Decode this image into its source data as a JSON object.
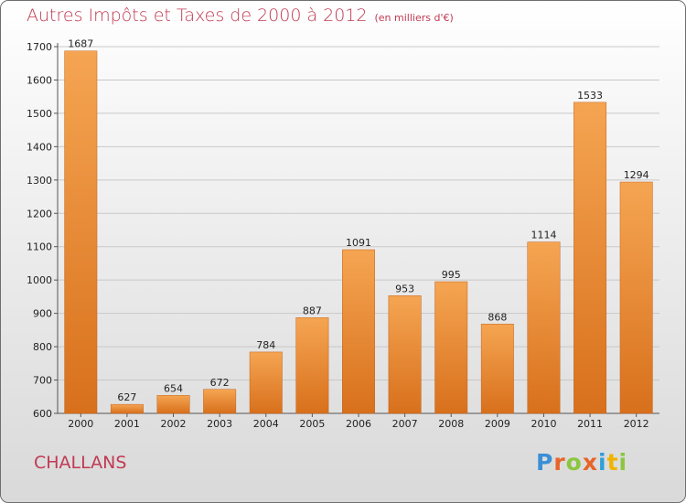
{
  "header": {
    "title": "Autres Impôts et Taxes de 2000 à 2012",
    "subtitle": "(en milliers d'€)"
  },
  "footer": {
    "place": "CHALLANS",
    "logo": {
      "text": "Proxiti",
      "letter_colors": [
        "#3b8fd6",
        "#e7652a",
        "#8cc63f",
        "#e7652a",
        "#2f9fd8",
        "#f0b400",
        "#8cc63f"
      ]
    }
  },
  "colors": {
    "title": "#c13a53",
    "bar_light": "#f5a552",
    "bar_dark": "#d8701c"
  },
  "chart_data": {
    "type": "bar",
    "categories": [
      "2000",
      "2001",
      "2002",
      "2003",
      "2004",
      "2005",
      "2006",
      "2007",
      "2008",
      "2009",
      "2010",
      "2011",
      "2012"
    ],
    "values": [
      1687,
      627,
      654,
      672,
      784,
      887,
      1091,
      953,
      995,
      868,
      1114,
      1533,
      1294
    ],
    "ylim": [
      600,
      1700
    ],
    "yticks": [
      600,
      700,
      800,
      900,
      1000,
      1100,
      1200,
      1300,
      1400,
      1500,
      1600,
      1700
    ],
    "grid": true
  }
}
